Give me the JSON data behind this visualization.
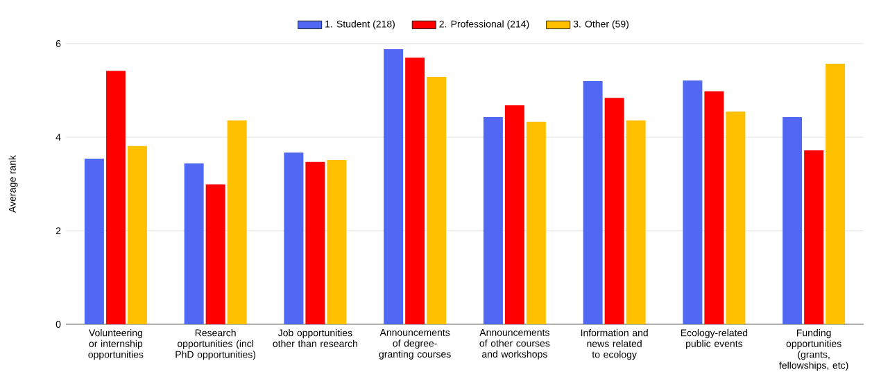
{
  "chart_data": {
    "type": "bar",
    "ylabel": "Average rank",
    "categories": [
      "Volunteering or internship opportunities",
      "Research opportunities (incl PhD opportunities)",
      "Job opportunities other than research",
      "Announcements of degree-granting courses",
      "Announcements of other courses and workshops",
      "Information and news related to ecology",
      "Ecology-related public events",
      "Funding opportunities (grants, fellowships, etc)"
    ],
    "series": [
      {
        "name": "1. Student (218)",
        "color": "#5068f2",
        "values": [
          3.54,
          3.44,
          3.67,
          5.88,
          4.43,
          5.2,
          5.21,
          4.43
        ]
      },
      {
        "name": "2. Professional (214)",
        "color": "#ff0000",
        "values": [
          5.42,
          2.99,
          3.47,
          5.7,
          4.68,
          4.84,
          4.98,
          3.72
        ]
      },
      {
        "name": "3. Other (59)",
        "color": "#ffc000",
        "values": [
          3.81,
          4.36,
          3.51,
          5.29,
          4.33,
          4.36,
          4.55,
          5.57
        ]
      }
    ],
    "ylim": [
      0,
      6
    ],
    "yticks": [
      0,
      2,
      4,
      6
    ],
    "grid": "y",
    "legend": "top"
  }
}
